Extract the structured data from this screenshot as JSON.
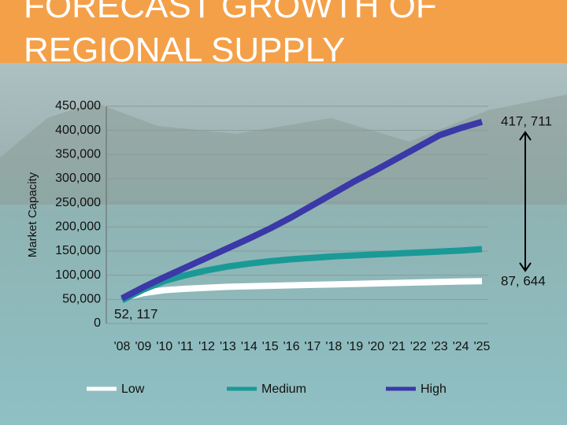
{
  "chart_data": {
    "type": "line",
    "title": "FORECAST GROWTH OF REGIONAL SUPPLY",
    "y_label": "Market Capacity",
    "categories": [
      "'08",
      "'09",
      "'10",
      "'11",
      "'12",
      "'13",
      "'14",
      "'15",
      "'16",
      "'17",
      "'18",
      "'19",
      "'20",
      "'21",
      "'22",
      "'23",
      "'24",
      "'25"
    ],
    "series": [
      {
        "name": "Low",
        "color": "#ffffff",
        "values": [
          52000,
          63000,
          69000,
          72000,
          74000,
          76000,
          77000,
          78000,
          79000,
          80000,
          81000,
          82000,
          83000,
          84000,
          85000,
          86000,
          87000,
          87644
        ]
      },
      {
        "name": "Medium",
        "color": "#1a9a96",
        "values": [
          48000,
          70000,
          88000,
          100000,
          110000,
          118000,
          124000,
          129000,
          133000,
          136000,
          139000,
          141000,
          143000,
          145000,
          147000,
          149000,
          151000,
          154000
        ]
      },
      {
        "name": "High",
        "color": "#3b38a8",
        "values": [
          52117,
          75000,
          96000,
          116000,
          136000,
          156000,
          176000,
          197000,
          220000,
          245000,
          270000,
          295000,
          318000,
          342000,
          366000,
          390000,
          405000,
          417711
        ]
      }
    ],
    "annotations": [
      "417, 711",
      "87, 644",
      "52, 117"
    ],
    "ylim": [
      0,
      450000
    ],
    "yticks": [
      0,
      {
        "value": 50000,
        "label": "50,000"
      },
      {
        "value": 100000,
        "label": "100,000"
      },
      {
        "value": 150000,
        "label": "150,000"
      },
      {
        "value": 200000,
        "label": "200,000"
      },
      {
        "value": 250000,
        "label": "250,000"
      },
      {
        "value": 300000,
        "label": "300,000"
      },
      {
        "value": 350000,
        "label": "350,000"
      },
      {
        "value": 400000,
        "label": "400,000"
      },
      {
        "value": 450000,
        "label": "450,000"
      }
    ],
    "grid": true
  }
}
